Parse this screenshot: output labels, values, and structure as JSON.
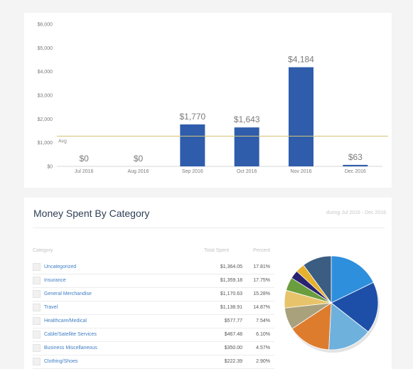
{
  "chart_data": [
    {
      "type": "bar",
      "categories": [
        "Jul 2016",
        "Aug 2016",
        "Sep 2016",
        "Oct 2016",
        "Nov 2016",
        "Dec 2016"
      ],
      "values": [
        0,
        0,
        1770,
        1643,
        4184,
        63
      ],
      "data_labels": [
        "$0",
        "$0",
        "$1,770",
        "$1,643",
        "$4,184",
        "$63"
      ],
      "yticks": [
        0,
        1000,
        2000,
        3000,
        4000,
        5000,
        6000
      ],
      "ytick_labels": [
        "$0",
        "$1,000",
        "$2,000",
        "$3,000",
        "$4,000",
        "$5,000",
        "$6,000"
      ],
      "ylim": [
        0,
        6000
      ],
      "avg_value": 1276,
      "avg_label": "Avg",
      "bar_color": "#2f5dab",
      "avg_color": "#d4c277",
      "grid": false
    },
    {
      "type": "pie",
      "title": "Money Spent By Category",
      "subtitle": "during Jul 2016 - Dec 2016",
      "columns": [
        "Category",
        "Total Spent",
        "Percent"
      ],
      "rows": [
        {
          "category": "Uncategorized",
          "total": "$1,364.05",
          "percent": "17.81%"
        },
        {
          "category": "Insurance",
          "total": "$1,359.18",
          "percent": "17.75%"
        },
        {
          "category": "General Merchandise",
          "total": "$1,170.63",
          "percent": "15.28%"
        },
        {
          "category": "Travel",
          "total": "$1,138.91",
          "percent": "14.87%"
        },
        {
          "category": "Healthcare/Medical",
          "total": "$577.77",
          "percent": "7.54%"
        },
        {
          "category": "Cable/Satellite Services",
          "total": "$467.48",
          "percent": "6.10%"
        },
        {
          "category": "Business Miscellaneous",
          "total": "$350.00",
          "percent": "4.57%"
        },
        {
          "category": "Clothing/Shoes",
          "total": "$222.39",
          "percent": "2.90%"
        }
      ],
      "slices": [
        {
          "value": 17.81,
          "color": "#2e8fdc"
        },
        {
          "value": 17.75,
          "color": "#1d4fa8"
        },
        {
          "value": 15.28,
          "color": "#6fb1dd"
        },
        {
          "value": 14.87,
          "color": "#de7c2e"
        },
        {
          "value": 7.54,
          "color": "#a8a17c"
        },
        {
          "value": 6.1,
          "color": "#e7c46b"
        },
        {
          "value": 4.57,
          "color": "#6a9d3e"
        },
        {
          "value": 2.9,
          "color": "#2a2370"
        },
        {
          "value": 3.1,
          "color": "#e6b12d"
        },
        {
          "value": 10.08,
          "color": "#3b5d82"
        }
      ]
    }
  ]
}
